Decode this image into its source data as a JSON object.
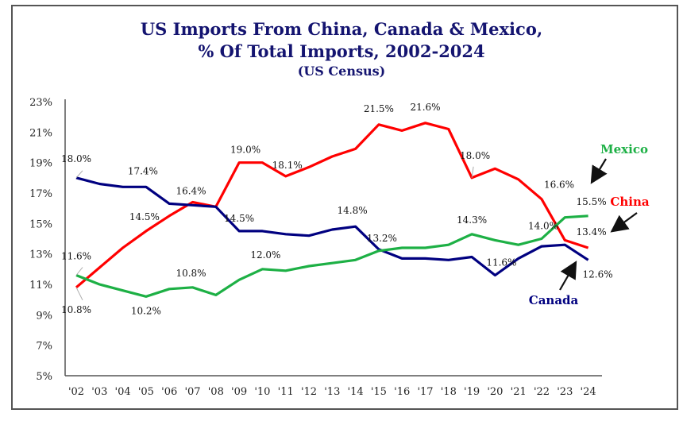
{
  "chart_data": {
    "type": "line",
    "title": "US Imports From China, Canada & Mexico,",
    "title_line2": "% Of Total Imports, 2002-2024",
    "subtitle": "(US Census)",
    "xlabel": "",
    "ylabel": "",
    "ylim": [
      5,
      23
    ],
    "grid": false,
    "legend": "direct-labels-right",
    "x": [
      "'02",
      "'03",
      "'04",
      "'05",
      "'06",
      "'07",
      "'08",
      "'09",
      "'10",
      "'11",
      "'12",
      "'13",
      "'14",
      "'15",
      "'16",
      "'17",
      "'18",
      "'19",
      "'20",
      "'21",
      "'22",
      "'23",
      "'24"
    ],
    "yticks": [
      "5%",
      "7%",
      "9%",
      "11%",
      "13%",
      "15%",
      "17%",
      "19%",
      "21%",
      "23%"
    ],
    "ytick_values": [
      5,
      7,
      9,
      11,
      13,
      15,
      17,
      19,
      21,
      23
    ],
    "series": [
      {
        "name": "China",
        "color": "#ff0000",
        "values": [
          10.8,
          12.1,
          13.4,
          14.5,
          15.5,
          16.4,
          16.1,
          19.0,
          19.0,
          18.1,
          18.7,
          19.4,
          19.9,
          21.5,
          21.1,
          21.6,
          21.2,
          18.0,
          18.6,
          17.9,
          16.6,
          13.9,
          13.4
        ]
      },
      {
        "name": "Canada",
        "color": "#000080",
        "values": [
          18.0,
          17.6,
          17.4,
          17.4,
          16.3,
          16.2,
          16.1,
          14.5,
          14.5,
          14.3,
          14.2,
          14.6,
          14.8,
          13.3,
          12.7,
          12.7,
          12.6,
          12.8,
          11.6,
          12.7,
          13.5,
          13.6,
          12.6
        ]
      },
      {
        "name": "Mexico",
        "color": "#1db045",
        "values": [
          11.6,
          11.0,
          10.6,
          10.2,
          10.7,
          10.8,
          10.3,
          11.3,
          12.0,
          11.9,
          12.2,
          12.4,
          12.6,
          13.2,
          13.4,
          13.4,
          13.6,
          14.3,
          13.9,
          13.6,
          14.0,
          15.4,
          15.5
        ]
      }
    ],
    "data_labels": [
      {
        "series": "Canada",
        "index": 0,
        "text": "18.0%"
      },
      {
        "series": "Canada",
        "index": 3,
        "text": "17.4%"
      },
      {
        "series": "Canada",
        "index": 7,
        "text": "14.5%"
      },
      {
        "series": "Canada",
        "index": 12,
        "text": "14.8%"
      },
      {
        "series": "Canada",
        "index": 18,
        "text": "11.6%"
      },
      {
        "series": "Canada",
        "index": 22,
        "text": "12.6%"
      },
      {
        "series": "China",
        "index": 0,
        "text": "10.8%"
      },
      {
        "series": "China",
        "index": 3,
        "text": "14.5%"
      },
      {
        "series": "China",
        "index": 5,
        "text": "16.4%"
      },
      {
        "series": "China",
        "index": 7,
        "text": "19.0%"
      },
      {
        "series": "China",
        "index": 9,
        "text": "18.1%"
      },
      {
        "series": "China",
        "index": 13,
        "text": "21.5%"
      },
      {
        "series": "China",
        "index": 15,
        "text": "21.6%"
      },
      {
        "series": "China",
        "index": 17,
        "text": "18.0%"
      },
      {
        "series": "China",
        "index": 20,
        "text": "16.6%"
      },
      {
        "series": "China",
        "index": 22,
        "text": "13.4%"
      },
      {
        "series": "Mexico",
        "index": 0,
        "text": "11.6%"
      },
      {
        "series": "Mexico",
        "index": 3,
        "text": "10.2%"
      },
      {
        "series": "Mexico",
        "index": 5,
        "text": "10.8%"
      },
      {
        "series": "Mexico",
        "index": 8,
        "text": "12.0%"
      },
      {
        "series": "Mexico",
        "index": 13,
        "text": "13.2%"
      },
      {
        "series": "Mexico",
        "index": 17,
        "text": "14.3%"
      },
      {
        "series": "Mexico",
        "index": 20,
        "text": "14.0%"
      },
      {
        "series": "Mexico",
        "index": 22,
        "text": "15.5%"
      }
    ],
    "annotations": [
      "Mexico",
      "China",
      "Canada"
    ]
  }
}
